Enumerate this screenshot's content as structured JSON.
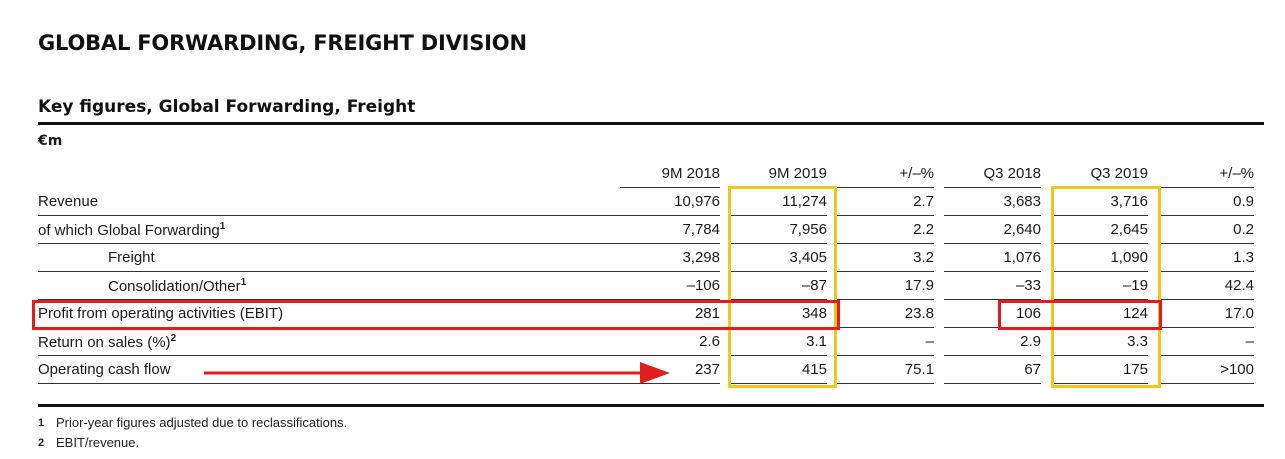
{
  "title": "GLOBAL FORWARDING, FREIGHT DIVISION",
  "subtitle": "Key figures, Global Forwarding, Freight",
  "unit": "€m",
  "columns": [
    "9M 2018",
    "9M 2019",
    "+/–%",
    "Q3 2018",
    "Q3 2019",
    "+/–%"
  ],
  "rows": [
    {
      "label": "Revenue",
      "sup": "",
      "values": [
        "10,976",
        "11,274",
        "2.7",
        "3,683",
        "3,716",
        "0.9"
      ]
    },
    {
      "label": "of which Global Forwarding",
      "sup": "1",
      "values": [
        "7,784",
        "7,956",
        "2.2",
        "2,640",
        "2,645",
        "0.2"
      ]
    },
    {
      "label": "Freight",
      "sup": "",
      "values": [
        "3,298",
        "3,405",
        "3.2",
        "1,076",
        "1,090",
        "1.3"
      ]
    },
    {
      "label": "Consolidation/Other",
      "sup": "1",
      "values": [
        "–106",
        "–87",
        "17.9",
        "–33",
        "–19",
        "42.4"
      ]
    },
    {
      "label": "Profit from operating activities (EBIT)",
      "sup": "",
      "values": [
        "281",
        "348",
        "23.8",
        "106",
        "124",
        "17.0"
      ]
    },
    {
      "label": "Return on sales (%)",
      "sup": "2",
      "values": [
        "2.6",
        "3.1",
        "–",
        "2.9",
        "3.3",
        "–"
      ]
    },
    {
      "label": "Operating cash flow",
      "sup": "",
      "values": [
        "237",
        "415",
        "75.1",
        "67",
        "175",
        ">100"
      ]
    }
  ],
  "footnotes": [
    {
      "mark": "1",
      "text": "Prior-year figures adjusted due to reclassifications."
    },
    {
      "mark": "2",
      "text": "EBIT/revenue."
    }
  ],
  "colors": {
    "highlight_yellow": "#f5c518",
    "highlight_red": "#e31c1c"
  }
}
